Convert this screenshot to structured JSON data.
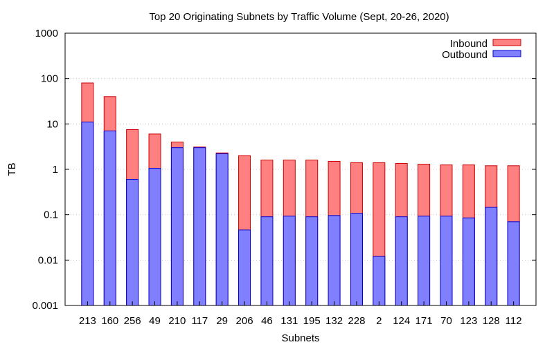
{
  "chart_data": {
    "type": "bar",
    "stacked": true,
    "title": "Top 20 Originating Subnets by Traffic Volume (Sept, 20-26, 2020)",
    "xlabel": "Subnets",
    "ylabel": "TB",
    "y_scale": "log",
    "ylim": [
      0.001,
      1000
    ],
    "y_ticks": [
      "0.001",
      "0.01",
      "0.1",
      "1",
      "10",
      "100",
      "1000"
    ],
    "y_tick_values": [
      0.001,
      0.01,
      0.1,
      1,
      10,
      100,
      1000
    ],
    "grid": "horizontal dotted",
    "legend_position": "top-right",
    "categories": [
      "213",
      "160",
      "256",
      "49",
      "210",
      "117",
      "29",
      "206",
      "46",
      "131",
      "195",
      "132",
      "228",
      "2",
      "124",
      "171",
      "70",
      "123",
      "128",
      "112"
    ],
    "series": [
      {
        "name": "Inbound",
        "color": "#ff8080",
        "note_total_stack_top_TB": true,
        "values": [
          80,
          40,
          7.5,
          6,
          4,
          3.1,
          2.3,
          2,
          1.6,
          1.6,
          1.6,
          1.5,
          1.4,
          1.4,
          1.35,
          1.3,
          1.25,
          1.25,
          1.2,
          1.2
        ]
      },
      {
        "name": "Outbound",
        "color": "#8080ff",
        "values": [
          11,
          7,
          0.6,
          1.05,
          3,
          3,
          2.2,
          0.046,
          0.09,
          0.093,
          0.09,
          0.096,
          0.107,
          0.012,
          0.09,
          0.093,
          0.093,
          0.085,
          0.145,
          0.07
        ]
      }
    ]
  }
}
